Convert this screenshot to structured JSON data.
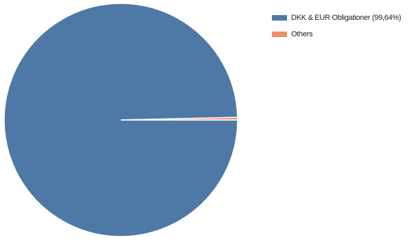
{
  "chart_data": {
    "type": "pie",
    "title": "",
    "slices": [
      {
        "label": "DKK & EUR Obligationer (99,64%)",
        "value": 99.64,
        "color": "#4e79a7"
      },
      {
        "label": "Others",
        "value": 0.36,
        "color": "#f28e6b"
      }
    ],
    "legend_position": "top-right"
  }
}
